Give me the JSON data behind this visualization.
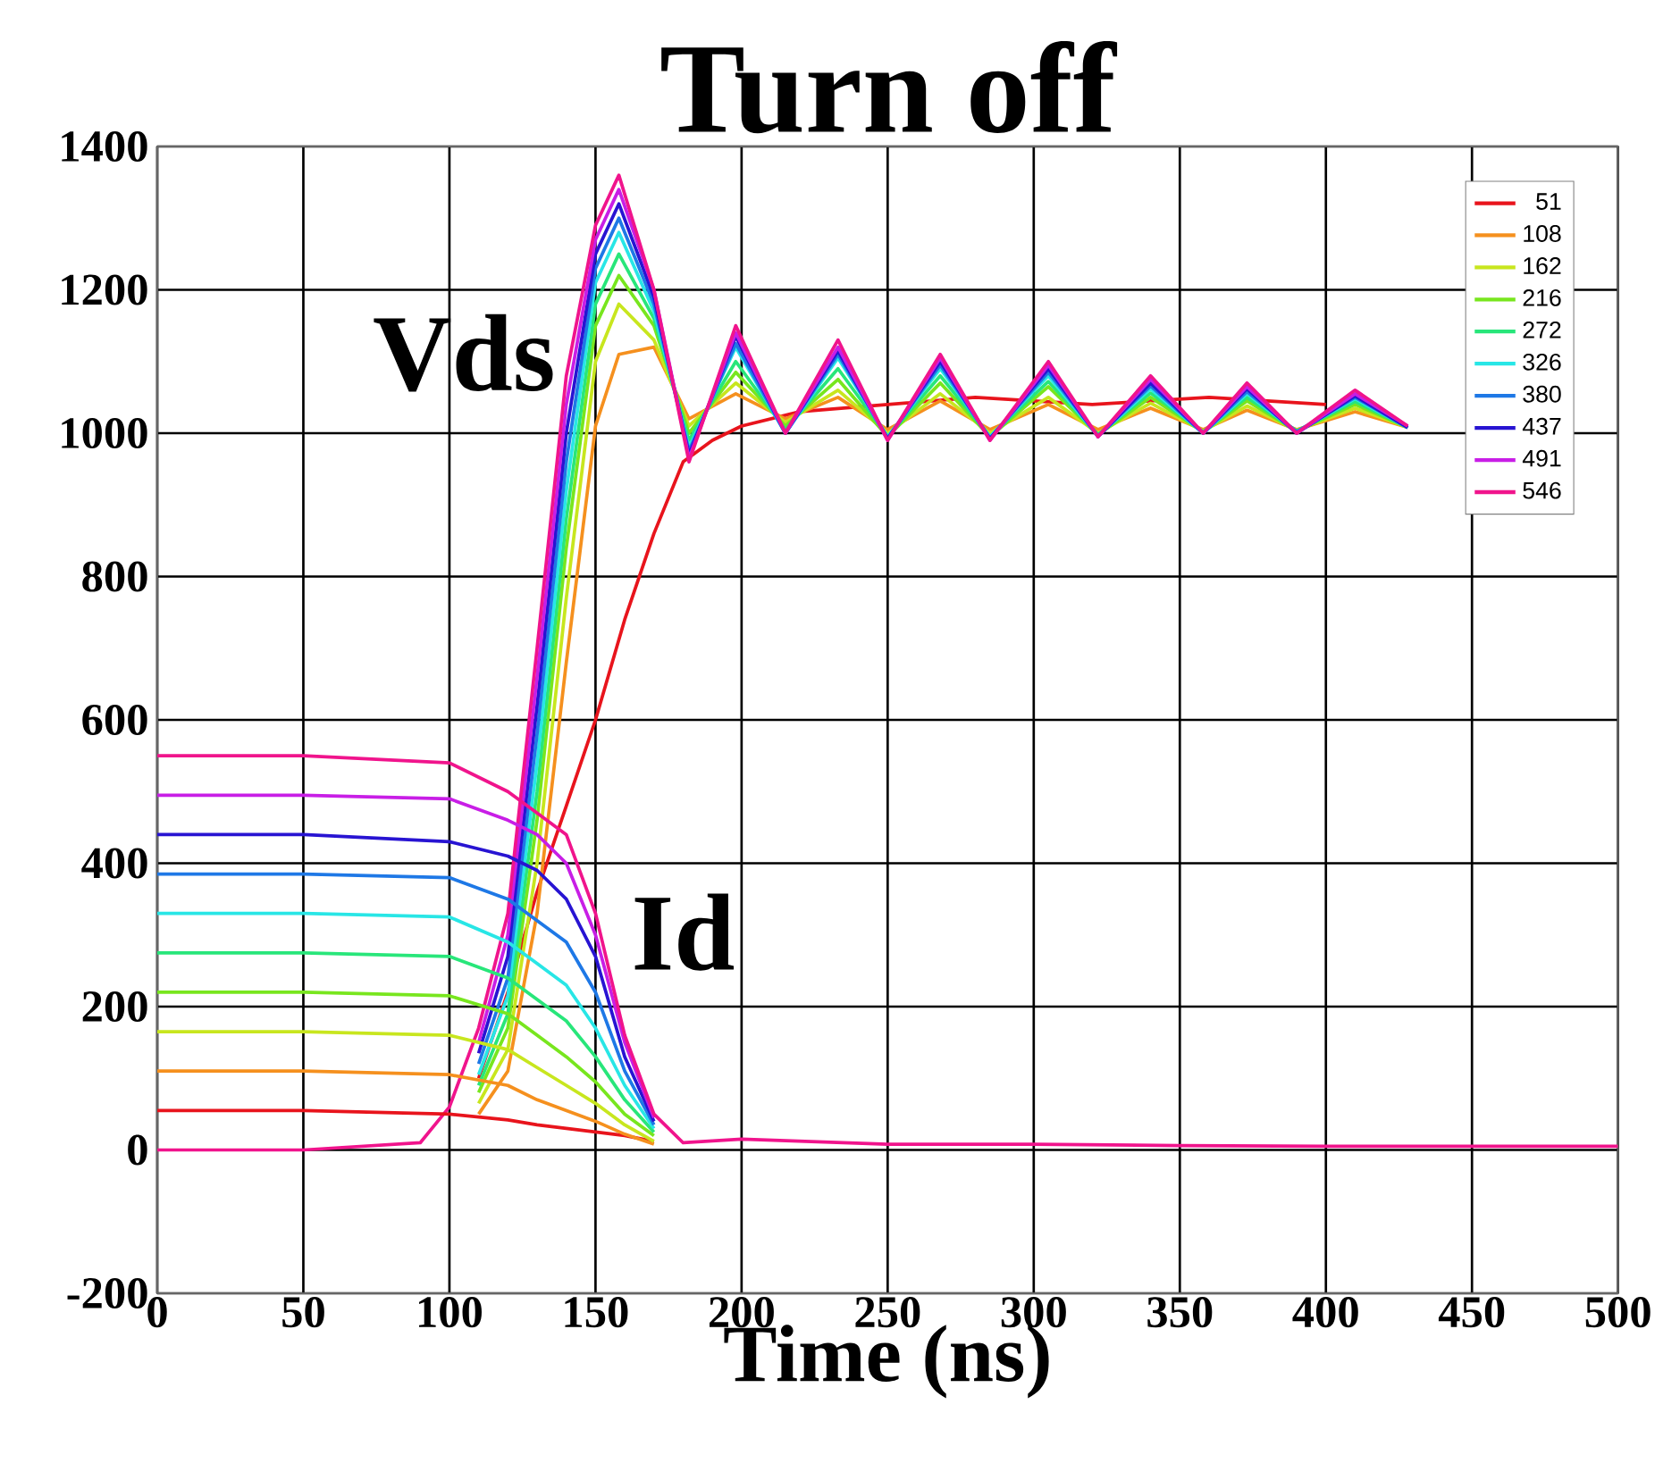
{
  "chart_data": {
    "type": "line",
    "title": "Turn off",
    "xlabel": "Time (ns)",
    "xlim": [
      0,
      500
    ],
    "ylim": [
      -200,
      1400
    ],
    "xticks": [
      0,
      50,
      100,
      150,
      200,
      250,
      300,
      350,
      400,
      450,
      500
    ],
    "yticks": [
      -200,
      0,
      200,
      400,
      600,
      800,
      1000,
      1200,
      1400
    ],
    "grid": true,
    "legend": "top right",
    "marker": "none",
    "line_style": "solid",
    "annotations": [
      "Vds",
      "Id"
    ],
    "series": [
      {
        "name": "51",
        "color": "#e8141c",
        "x": [
          110,
          120,
          130,
          140,
          150,
          160,
          170,
          180,
          190,
          200,
          220,
          250,
          280,
          320,
          360,
          400
        ],
        "values": [
          100,
          220,
          360,
          480,
          600,
          740,
          860,
          960,
          990,
          1010,
          1030,
          1040,
          1050,
          1040,
          1050,
          1040
        ]
      },
      {
        "name": "108",
        "color": "#f5901e",
        "x": [
          110,
          120,
          130,
          140,
          150,
          158,
          170,
          182,
          198,
          215,
          233,
          250,
          268,
          285,
          305,
          322,
          340,
          358,
          373,
          390,
          410,
          428
        ],
        "values": [
          50,
          110,
          330,
          680,
          1010,
          1110,
          1120,
          1020,
          1055,
          1020,
          1050,
          1005,
          1045,
          1005,
          1040,
          1005,
          1035,
          1005,
          1032,
          1005,
          1030,
          1008
        ]
      },
      {
        "name": "162",
        "color": "#c8e61e",
        "x": [
          110,
          120,
          130,
          140,
          150,
          158,
          170,
          182,
          198,
          215,
          233,
          250,
          268,
          285,
          305,
          322,
          340,
          358,
          373,
          390,
          410,
          428
        ],
        "values": [
          65,
          140,
          400,
          770,
          1100,
          1180,
          1130,
          1010,
          1070,
          1015,
          1060,
          1000,
          1055,
          1000,
          1050,
          1000,
          1042,
          1003,
          1038,
          1004,
          1035,
          1008
        ]
      },
      {
        "name": "216",
        "color": "#78e61e",
        "x": [
          110,
          120,
          130,
          140,
          150,
          158,
          170,
          182,
          198,
          215,
          233,
          250,
          268,
          285,
          305,
          322,
          340,
          358,
          373,
          390,
          410,
          428
        ],
        "values": [
          80,
          170,
          460,
          840,
          1150,
          1220,
          1150,
          1000,
          1085,
          1010,
          1075,
          995,
          1070,
          995,
          1065,
          998,
          1050,
          1002,
          1045,
          1003,
          1040,
          1008
        ]
      },
      {
        "name": "272",
        "color": "#28e67a",
        "x": [
          110,
          120,
          130,
          140,
          150,
          158,
          170,
          182,
          198,
          215,
          233,
          250,
          268,
          285,
          305,
          322,
          340,
          358,
          373,
          390,
          410,
          428
        ],
        "values": [
          90,
          190,
          500,
          880,
          1180,
          1250,
          1160,
          990,
          1100,
          1005,
          1090,
          995,
          1080,
          995,
          1072,
          998,
          1056,
          1002,
          1050,
          1003,
          1044,
          1008
        ]
      },
      {
        "name": "326",
        "color": "#28e6e6",
        "x": [
          110,
          120,
          130,
          140,
          150,
          158,
          170,
          182,
          198,
          215,
          233,
          250,
          268,
          285,
          305,
          322,
          340,
          358,
          373,
          390,
          410,
          428
        ],
        "values": [
          105,
          215,
          540,
          920,
          1210,
          1280,
          1170,
          980,
          1120,
          1000,
          1105,
          995,
          1090,
          995,
          1080,
          996,
          1062,
          1000,
          1055,
          1002,
          1048,
          1008
        ]
      },
      {
        "name": "380",
        "color": "#1e78e6",
        "x": [
          110,
          120,
          130,
          140,
          150,
          158,
          170,
          182,
          198,
          215,
          233,
          250,
          268,
          285,
          305,
          322,
          340,
          358,
          373,
          390,
          410,
          428
        ],
        "values": [
          120,
          240,
          580,
          960,
          1230,
          1300,
          1180,
          975,
          1125,
          1000,
          1110,
          993,
          1095,
          993,
          1085,
          996,
          1066,
          1000,
          1058,
          1002,
          1050,
          1008
        ]
      },
      {
        "name": "437",
        "color": "#2814d2",
        "x": [
          110,
          120,
          130,
          140,
          150,
          158,
          170,
          182,
          198,
          215,
          233,
          250,
          268,
          285,
          305,
          322,
          340,
          358,
          373,
          390,
          410,
          428
        ],
        "values": [
          135,
          270,
          620,
          1000,
          1250,
          1320,
          1190,
          970,
          1135,
          1000,
          1115,
          992,
          1100,
          992,
          1090,
          995,
          1070,
          1000,
          1062,
          1000,
          1052,
          1008
        ]
      },
      {
        "name": "491",
        "color": "#c81ee6",
        "x": [
          110,
          120,
          130,
          140,
          150,
          158,
          170,
          182,
          198,
          215,
          233,
          250,
          268,
          285,
          305,
          322,
          340,
          358,
          373,
          390,
          410,
          428
        ],
        "values": [
          150,
          300,
          660,
          1040,
          1270,
          1340,
          1200,
          965,
          1140,
          1000,
          1120,
          990,
          1105,
          990,
          1095,
          995,
          1075,
          1000,
          1065,
          1000,
          1055,
          1010
        ]
      },
      {
        "name": "546",
        "color": "#f0148c",
        "x": [
          0,
          50,
          90,
          100,
          110,
          120,
          130,
          140,
          150,
          158,
          170,
          182,
          198,
          215,
          233,
          250,
          268,
          285,
          305,
          322,
          340,
          358,
          373,
          390,
          410,
          428
        ],
        "values": [
          0,
          0,
          10,
          60,
          170,
          330,
          700,
          1080,
          1290,
          1360,
          1200,
          960,
          1150,
          1000,
          1130,
          990,
          1110,
          990,
          1100,
          995,
          1080,
          1000,
          1070,
          1000,
          1060,
          1010
        ]
      },
      {
        "color": "#e8141c",
        "x": [
          0,
          50,
          100,
          120,
          130,
          140,
          150,
          160,
          170
        ],
        "values": [
          55,
          55,
          50,
          42,
          35,
          30,
          25,
          20,
          12
        ]
      },
      {
        "color": "#f5901e",
        "x": [
          0,
          50,
          100,
          120,
          130,
          140,
          150,
          160,
          170
        ],
        "values": [
          110,
          110,
          105,
          90,
          70,
          55,
          40,
          22,
          8
        ]
      },
      {
        "color": "#c8e61e",
        "x": [
          0,
          50,
          100,
          120,
          130,
          140,
          150,
          160,
          170
        ],
        "values": [
          165,
          165,
          160,
          140,
          115,
          90,
          65,
          35,
          12
        ]
      },
      {
        "color": "#78e61e",
        "x": [
          0,
          50,
          100,
          120,
          130,
          140,
          150,
          160,
          170
        ],
        "values": [
          220,
          220,
          215,
          190,
          160,
          130,
          95,
          50,
          20
        ]
      },
      {
        "color": "#28e67a",
        "x": [
          0,
          50,
          100,
          120,
          130,
          140,
          150,
          160,
          170
        ],
        "values": [
          275,
          275,
          270,
          240,
          210,
          180,
          130,
          70,
          25
        ]
      },
      {
        "color": "#28e6e6",
        "x": [
          0,
          50,
          100,
          120,
          130,
          140,
          150,
          160,
          170
        ],
        "values": [
          330,
          330,
          325,
          290,
          260,
          230,
          170,
          90,
          30
        ]
      },
      {
        "color": "#1e78e6",
        "x": [
          0,
          50,
          100,
          120,
          130,
          140,
          150,
          160,
          170
        ],
        "values": [
          385,
          385,
          380,
          350,
          320,
          290,
          220,
          110,
          35
        ]
      },
      {
        "color": "#2814d2",
        "x": [
          0,
          50,
          100,
          120,
          130,
          140,
          150,
          160,
          170
        ],
        "values": [
          440,
          440,
          430,
          410,
          390,
          350,
          270,
          130,
          40
        ]
      },
      {
        "color": "#c81ee6",
        "x": [
          0,
          50,
          100,
          120,
          130,
          140,
          150,
          160,
          170
        ],
        "values": [
          495,
          495,
          490,
          460,
          440,
          400,
          300,
          150,
          45
        ]
      },
      {
        "color": "#f0148c",
        "x": [
          0,
          50,
          100,
          120,
          130,
          140,
          150,
          160,
          170,
          180,
          200,
          250,
          300,
          350,
          400,
          450,
          500
        ],
        "values": [
          550,
          550,
          540,
          500,
          470,
          440,
          330,
          160,
          50,
          10,
          15,
          8,
          8,
          6,
          5,
          5,
          5
        ]
      }
    ]
  }
}
